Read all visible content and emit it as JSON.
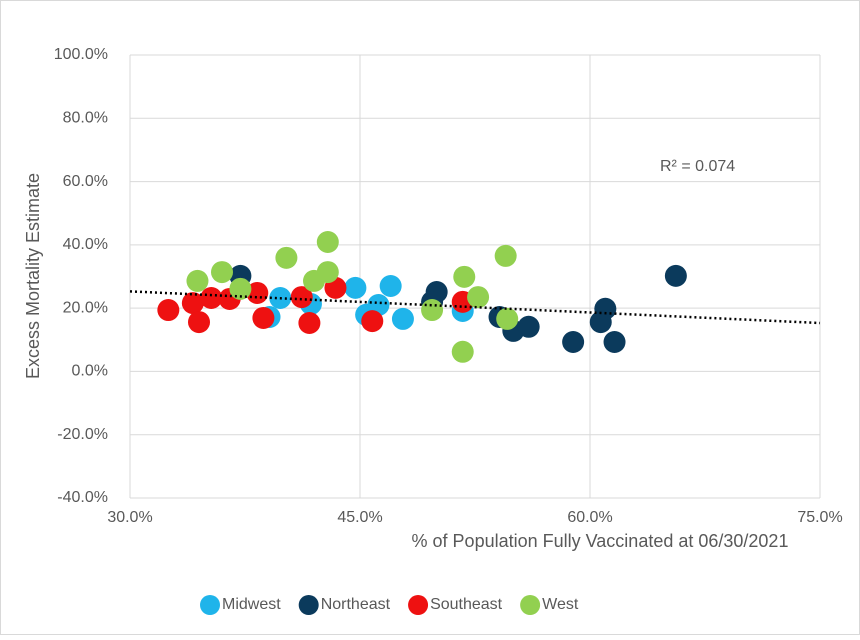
{
  "chart_data": {
    "type": "scatter",
    "x_label": "% of Population Fully Vaccinated at 06/30/2021",
    "y_label": "Excess Mortality Estimate",
    "annotation": "R² = 0.074",
    "xlim": [
      30,
      75
    ],
    "xticks": [
      {
        "value": 30,
        "label": "30.0%"
      },
      {
        "value": 45,
        "label": "45.0%"
      },
      {
        "value": 60,
        "label": "60.0%"
      },
      {
        "value": 75,
        "label": "75.0%"
      }
    ],
    "ylim": [
      -40,
      100
    ],
    "yticks": [
      {
        "value": -40,
        "label": "-40.0%"
      },
      {
        "value": -20,
        "label": "-20.0%"
      },
      {
        "value": 0,
        "label": "0.0%"
      },
      {
        "value": 20,
        "label": "20.0%"
      },
      {
        "value": 40,
        "label": "40.0%"
      },
      {
        "value": 60,
        "label": "60.0%"
      },
      {
        "value": 80,
        "label": "80.0%"
      },
      {
        "value": 100,
        "label": "100.0%"
      }
    ],
    "grid": true,
    "legend": "bottom",
    "trendline": {
      "x": [
        30,
        75
      ],
      "y": [
        25.3,
        15.3
      ]
    },
    "series": [
      {
        "name": "Midwest",
        "color": "#1fb4ea",
        "x": [
          39.1,
          39.8,
          41.8,
          44.7,
          45.4,
          46.2,
          47.0,
          47.8,
          51.7
        ],
        "values": [
          17.2,
          23.2,
          21.3,
          26.4,
          17.9,
          21.0,
          27.0,
          16.6,
          19.1
        ]
      },
      {
        "name": "Northeast",
        "color": "#0b3a5c",
        "x": [
          37.2,
          50.0,
          49.7,
          54.1,
          55.0,
          56.0,
          58.9,
          60.7,
          61.0,
          61.6,
          65.6
        ],
        "values": [
          30.2,
          25.1,
          22.0,
          17.2,
          12.8,
          14.1,
          9.3,
          15.6,
          19.8,
          9.3,
          30.2
        ]
      },
      {
        "name": "Southeast",
        "color": "#ee1111",
        "x": [
          32.5,
          34.1,
          35.3,
          34.5,
          36.5,
          38.3,
          38.7,
          41.2,
          41.7,
          43.4,
          45.8,
          51.7
        ],
        "values": [
          19.4,
          21.6,
          23.2,
          15.6,
          22.9,
          24.8,
          16.9,
          23.5,
          15.3,
          26.4,
          15.9,
          22.0
        ]
      },
      {
        "name": "West",
        "color": "#92d050",
        "x": [
          34.4,
          36.0,
          37.2,
          40.2,
          42.0,
          42.9,
          42.9,
          49.7,
          51.8,
          52.7,
          54.5,
          54.6,
          51.7
        ],
        "values": [
          28.6,
          31.4,
          26.1,
          35.9,
          28.6,
          31.4,
          40.9,
          19.4,
          29.9,
          23.5,
          36.5,
          16.6,
          6.2
        ]
      }
    ]
  }
}
